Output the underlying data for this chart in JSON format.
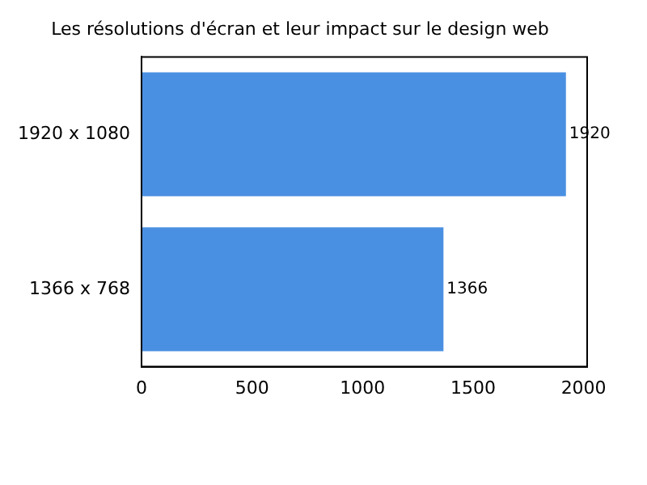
{
  "chart_data": {
    "type": "bar",
    "orientation": "horizontal",
    "title": "Les résolutions d'écran et leur impact sur le design web",
    "categories": [
      "1920 x 1080",
      "1366 x 768"
    ],
    "values": [
      1920,
      1366
    ],
    "color": "#4a90e2",
    "xlim": [
      0,
      2016
    ],
    "xticks": [
      0,
      500,
      1000,
      1500,
      2000
    ],
    "grid": false,
    "data_labels": true
  }
}
